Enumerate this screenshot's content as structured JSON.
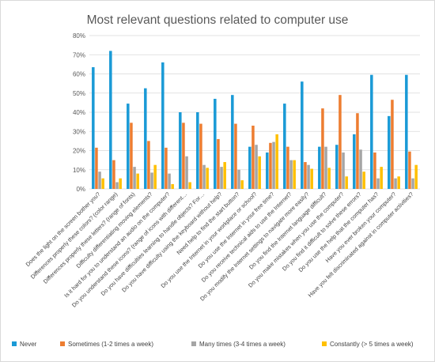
{
  "chart_data": {
    "type": "bar",
    "title": "Most relevant questions related to computer use",
    "xlabel": "",
    "ylabel": "",
    "ylim": [
      0,
      80
    ],
    "yticks": [
      "0%",
      "10%",
      "20%",
      "30%",
      "40%",
      "50%",
      "60%",
      "70%",
      "80%"
    ],
    "grid": true,
    "legend_position": "bottom",
    "categories": [
      "Does the light on the screen bother you?",
      "Differences properly these colors? (color range)",
      "Differences properly these letters? (range of fonts)",
      "Difficulty differentiating moving elements?",
      "Is it hard for you to understand an audio on the computer?",
      "Do you understand these icons? (range of icons with different…",
      "Do you have difficulties learning to handle objects? For…",
      "Do you have difficulty using the keyboard without help?",
      "Need help to find the start button?",
      "Do you use the Internet in your workplace or school?",
      "Do you use the Internet in your free time?",
      "Do you receive technical aids to use the Internet?",
      "Do you modify the Internet settings to navigate more easily?",
      "Do you find the Internet language difficult?",
      "Do you make mistakes when you use the computer?",
      "Do you find it difficult to solve these errors?",
      "Do you use the help that the computer has?",
      "Have you ever broken your computer?",
      "Have you felt discriminated against in computer activities?"
    ],
    "series": [
      {
        "name": "Never",
        "color": "#1a9ad6",
        "values": [
          63.5,
          72,
          44.5,
          52.5,
          66,
          40,
          40,
          47,
          49,
          22,
          19,
          44.5,
          56,
          22,
          23,
          28.5,
          59.5,
          38,
          59.5
        ]
      },
      {
        "name": "Sometimes (1-2 times a week)",
        "color": "#ed7d31",
        "values": [
          21.5,
          15,
          34.5,
          25,
          21.5,
          34.5,
          34,
          26,
          34,
          33,
          24,
          22,
          14,
          42,
          49,
          39.5,
          19,
          46.5,
          19.5
        ]
      },
      {
        "name": "Many times (3-4 times a week)",
        "color": "#a5a5a5",
        "values": [
          9,
          3.5,
          11.5,
          8.5,
          8,
          17,
          12.5,
          11.5,
          10,
          23,
          24.5,
          15,
          12.5,
          22,
          19,
          20.5,
          5.5,
          5.5,
          5.5
        ]
      },
      {
        "name": "Constantly (> 5 times a week)",
        "color": "#ffc000",
        "values": [
          5.5,
          5.5,
          8,
          12.5,
          2.5,
          3.5,
          11,
          14,
          4.5,
          17,
          28.5,
          15,
          10.5,
          11,
          6.5,
          9,
          11.5,
          6.5,
          12.5
        ]
      }
    ]
  }
}
